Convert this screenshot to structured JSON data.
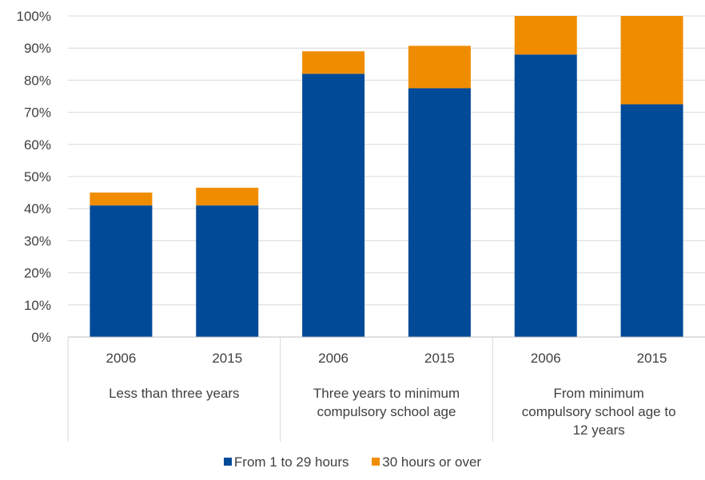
{
  "chart_data": {
    "type": "bar",
    "stacked": true,
    "groups": [
      {
        "label_lines": [
          "Less than three years"
        ],
        "categories": [
          "2006",
          "2015"
        ]
      },
      {
        "label_lines": [
          "Three years to minimum",
          "compulsory school age"
        ],
        "categories": [
          "2006",
          "2015"
        ]
      },
      {
        "label_lines": [
          "From minimum",
          "compulsory school age to",
          "12 years"
        ],
        "categories": [
          "2006",
          "2015"
        ]
      }
    ],
    "series": [
      {
        "name": "From 1 to 29 hours",
        "color": "#004A98",
        "values": [
          41,
          41,
          82,
          77.5,
          88,
          72.5
        ]
      },
      {
        "name": "30 hours or over",
        "color": "#F08C00",
        "values": [
          4,
          5.5,
          7,
          13.2,
          12,
          27.5
        ]
      }
    ],
    "ylim": [
      0,
      100
    ],
    "yticks": [
      "0%",
      "10%",
      "20%",
      "30%",
      "40%",
      "50%",
      "60%",
      "70%",
      "80%",
      "90%",
      "100%"
    ],
    "grid": true,
    "legend": "bottom"
  }
}
